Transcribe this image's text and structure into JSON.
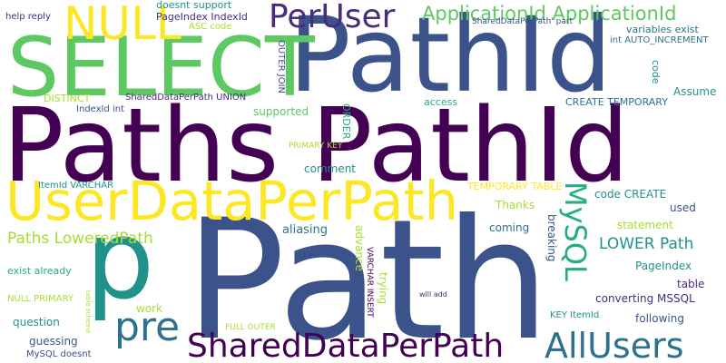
{
  "palette": {
    "purple": "#440154",
    "indigo": "#472d7b",
    "blue": "#3b528b",
    "steel": "#2c728e",
    "teal": "#21918c",
    "green": "#27ad81",
    "lime": "#5ec962",
    "yellowgreen": "#aadc32",
    "yellow": "#fde725"
  },
  "words": [
    {
      "text": "Path"
    },
    {
      "text": "Paths PathId"
    },
    {
      "text": "PathId"
    },
    {
      "text": "SELECT"
    },
    {
      "text": "UserDataPerPath"
    },
    {
      "text": "p"
    },
    {
      "text": "NULL"
    },
    {
      "text": "PerUser"
    },
    {
      "text": "ApplicationId ApplicationId"
    },
    {
      "text": "SharedDataPerPath"
    },
    {
      "text": "AllUsers"
    },
    {
      "text": "pre"
    },
    {
      "text": "MySQL"
    },
    {
      "text": "Paths LoweredPath"
    },
    {
      "text": "LOWER Path"
    },
    {
      "text": "help reply"
    },
    {
      "text": "doesnt support"
    },
    {
      "text": "PageIndex IndexId"
    },
    {
      "text": "ASC code"
    },
    {
      "text": "SharedDataPerPath' part"
    },
    {
      "text": "variables exist"
    },
    {
      "text": "int AUTO_INCREMENT"
    },
    {
      "text": "OUTER JOIN"
    },
    {
      "text": "code"
    },
    {
      "text": "Assume"
    },
    {
      "text": "DISTINCT"
    },
    {
      "text": "SharedDataPerPath UNION"
    },
    {
      "text": "CREATE TEMPORARY"
    },
    {
      "text": "access"
    },
    {
      "text": "IndexId int"
    },
    {
      "text": "supported"
    },
    {
      "text": "ORDER"
    },
    {
      "text": "PRIMARY KEY"
    },
    {
      "text": "comment"
    },
    {
      "text": "ItemId VARCHAR"
    },
    {
      "text": "TEMPORARY TABLE"
    },
    {
      "text": "code CREATE"
    },
    {
      "text": "Thanks"
    },
    {
      "text": "used"
    },
    {
      "text": "coming"
    },
    {
      "text": "statement"
    },
    {
      "text": "aliasing"
    },
    {
      "text": "breaking"
    },
    {
      "text": "advance"
    },
    {
      "text": "PageIndex"
    },
    {
      "text": "exist already"
    },
    {
      "text": "VARCHAR INSERT"
    },
    {
      "text": "trying"
    },
    {
      "text": "table"
    },
    {
      "text": "NULL PRIMARY"
    },
    {
      "text": "work"
    },
    {
      "text": "converting MSSQL"
    },
    {
      "text": "will add"
    },
    {
      "text": "KEY ItemId"
    },
    {
      "text": "following"
    },
    {
      "text": "question"
    },
    {
      "text": "table schema"
    },
    {
      "text": "FULL OUTER"
    },
    {
      "text": "guessing"
    },
    {
      "text": "MySQL doesnt"
    }
  ]
}
